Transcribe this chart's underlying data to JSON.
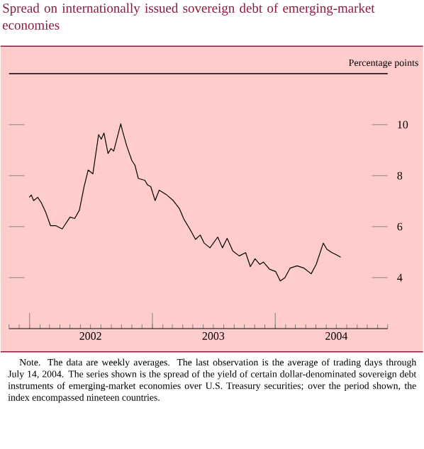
{
  "chart_data": {
    "type": "line",
    "title": "Spread on internationally issued sovereign debt of emerging-market economies",
    "ylabel": "Percentage points",
    "x": [
      "2001-12-31",
      "2002-01-06",
      "2002-01-13",
      "2002-01-25",
      "2002-02-05",
      "2002-02-18",
      "2002-03-04",
      "2002-03-19",
      "2002-04-08",
      "2002-05-01",
      "2002-05-15",
      "2002-05-29",
      "2002-06-12",
      "2002-06-24",
      "2002-07-08",
      "2002-07-25",
      "2002-08-02",
      "2002-08-10",
      "2002-08-22",
      "2002-08-31",
      "2002-09-08",
      "2002-09-29",
      "2002-10-03",
      "2002-10-17",
      "2002-11-01",
      "2002-11-10",
      "2002-11-20",
      "2002-12-09",
      "2002-12-18",
      "2002-12-27",
      "2003-01-09",
      "2003-01-21",
      "2003-02-11",
      "2003-03-04",
      "2003-03-22",
      "2003-04-05",
      "2003-04-22",
      "2003-05-09",
      "2003-05-23",
      "2003-06-04",
      "2003-06-21",
      "2003-07-14",
      "2003-07-28",
      "2003-08-11",
      "2003-08-28",
      "2003-09-16",
      "2003-10-05",
      "2003-10-19",
      "2003-11-02",
      "2003-11-16",
      "2003-11-27",
      "2003-12-15",
      "2004-01-02",
      "2004-01-16",
      "2004-01-30",
      "2004-02-14",
      "2004-03-06",
      "2004-03-27",
      "2004-04-17",
      "2004-05-02",
      "2004-05-23",
      "2004-06-03",
      "2004-06-18",
      "2004-07-02",
      "2004-07-14"
    ],
    "series": [
      {
        "color": "#000000",
        "values": [
          7.15,
          7.24,
          7.02,
          7.15,
          6.93,
          6.56,
          6.04,
          6.04,
          5.91,
          6.37,
          6.32,
          6.65,
          7.57,
          8.22,
          8.07,
          9.61,
          9.43,
          9.67,
          8.87,
          9.06,
          8.96,
          10.04,
          9.8,
          9.15,
          8.59,
          8.41,
          7.89,
          7.82,
          7.63,
          7.57,
          7.02,
          7.43,
          7.26,
          7.02,
          6.71,
          6.28,
          5.91,
          5.5,
          5.67,
          5.35,
          5.17,
          5.59,
          5.17,
          5.54,
          5.04,
          4.85,
          4.98,
          4.43,
          4.74,
          4.52,
          4.61,
          4.33,
          4.24,
          3.87,
          4.0,
          4.37,
          4.46,
          4.37,
          4.15,
          4.52,
          5.35,
          5.11,
          4.98,
          4.89,
          4.8
        ]
      }
    ],
    "xlim": [
      "2001-11",
      "2004-12"
    ],
    "xticks": [
      {
        "value": "2002-01",
        "label": null
      },
      {
        "value": "2003-01",
        "label": null
      },
      {
        "value": "2004-01",
        "label": null
      },
      {
        "value": "2002-07",
        "label": "2002"
      },
      {
        "value": "2003-07",
        "label": "2003"
      },
      {
        "value": "2004-07",
        "label": "2004"
      }
    ],
    "ylim": [
      2,
      12
    ],
    "yticks": [
      4,
      6,
      8,
      10
    ],
    "grid": false,
    "marker": "none",
    "line_style": "solid",
    "annotations": [
      "Note. The data are weekly averages. The last observation is the average of trading days through July 14, 2004. The series shown is the spread of the yield of certain dollar-denominated sovereign debt instruments of emerging-market economies over U.S. Treasury securities; over the period shown, the index encompassed nineteen countries."
    ]
  }
}
